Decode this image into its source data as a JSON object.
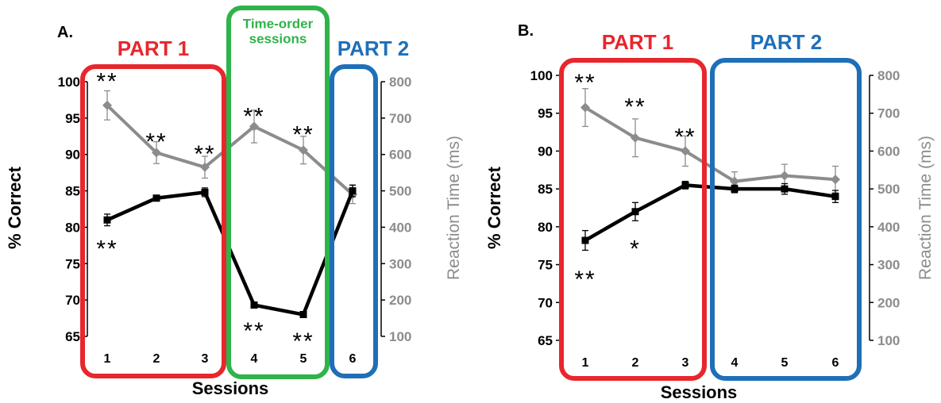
{
  "colors": {
    "accuracy": "#000000",
    "reaction_time": "#8c8c8c",
    "part1": "#e8262d",
    "part2": "#1f6fb8",
    "time_order": "#2fb34a",
    "axis": "#000000",
    "axis_right_text": "#8c8c8c"
  },
  "chart_data": [
    {
      "panel_label": "A.",
      "type": "line",
      "xlabel": "Sessions",
      "ylabel": "% Correct",
      "ylabel_right": "Reaction Time (ms)",
      "x": [
        "1",
        "2",
        "3",
        "4",
        "5",
        "6"
      ],
      "ylim": [
        65,
        100
      ],
      "yticks": [
        65,
        70,
        75,
        80,
        85,
        90,
        95,
        100
      ],
      "ylim_right": [
        100,
        800
      ],
      "yticks_right": [
        100,
        200,
        300,
        400,
        500,
        600,
        700,
        800
      ],
      "grid": false,
      "series": [
        {
          "axis": "left",
          "color": "#000000",
          "marker": "square",
          "values": [
            81,
            84,
            84.8,
            69.3,
            68,
            85
          ],
          "errors": [
            0.8,
            0.4,
            0.6,
            0.4,
            0.4,
            0.8
          ]
        },
        {
          "axis": "right",
          "color": "#8c8c8c",
          "marker": "diamond",
          "values": [
            735,
            605,
            565,
            677,
            612,
            490
          ],
          "errors": [
            40,
            30,
            30,
            45,
            38,
            25
          ]
        }
      ],
      "annotations": [
        {
          "text": "**",
          "x": 1,
          "y": 100.5
        },
        {
          "text": "**",
          "x": 2,
          "y": 92.2
        },
        {
          "text": "**",
          "x": 3,
          "y": 90.5
        },
        {
          "text": "**",
          "x": 4,
          "y": 95.7
        },
        {
          "text": "**",
          "x": 5,
          "y": 93.2
        },
        {
          "text": "**",
          "x": 1,
          "y": 77.5
        },
        {
          "text": "**",
          "x": 4,
          "y": 66.2
        },
        {
          "text": "**",
          "x": 5,
          "y": 64.8
        }
      ],
      "regions": [
        {
          "label": "PART 1",
          "color": "#e8262d",
          "from": 1,
          "to": 3
        },
        {
          "label": "Time-order sessions",
          "label_lines": [
            "Time-order",
            "sessions"
          ],
          "color": "#2fb34a",
          "from": 4,
          "to": 5
        },
        {
          "label": "PART 2",
          "color": "#1f6fb8",
          "from": 6,
          "to": 6
        }
      ]
    },
    {
      "panel_label": "B.",
      "type": "line",
      "xlabel": "Sessions",
      "ylabel": "% Correct",
      "ylabel_right": "Reaction Time (ms)",
      "x": [
        "1",
        "2",
        "3",
        "4",
        "5",
        "6"
      ],
      "ylim": [
        65,
        100
      ],
      "yticks": [
        65,
        70,
        75,
        80,
        85,
        90,
        95,
        100
      ],
      "ylim_right": [
        100,
        800
      ],
      "yticks_right": [
        100,
        200,
        300,
        400,
        500,
        600,
        700,
        800
      ],
      "grid": false,
      "series": [
        {
          "axis": "left",
          "color": "#000000",
          "marker": "square",
          "values": [
            78.2,
            82,
            85.5,
            85,
            85,
            84
          ],
          "errors": [
            1.3,
            1.2,
            0.5,
            0.5,
            0.7,
            0.8
          ]
        },
        {
          "axis": "right",
          "color": "#8c8c8c",
          "marker": "diamond",
          "values": [
            715,
            635,
            600,
            520,
            535,
            525
          ],
          "errors": [
            50,
            50,
            40,
            25,
            30,
            35
          ]
        }
      ],
      "annotations": [
        {
          "text": "**",
          "x": 1,
          "y": 99.5
        },
        {
          "text": "**",
          "x": 2,
          "y": 96.3
        },
        {
          "text": "**",
          "x": 3,
          "y": 92.3
        },
        {
          "text": "**",
          "x": 1,
          "y": 73.5
        },
        {
          "text": "*",
          "x": 2,
          "y": 77.5
        }
      ],
      "regions": [
        {
          "label": "PART 1",
          "color": "#e8262d",
          "from": 1,
          "to": 3
        },
        {
          "label": "PART 2",
          "color": "#1f6fb8",
          "from": 4,
          "to": 6
        }
      ]
    }
  ]
}
